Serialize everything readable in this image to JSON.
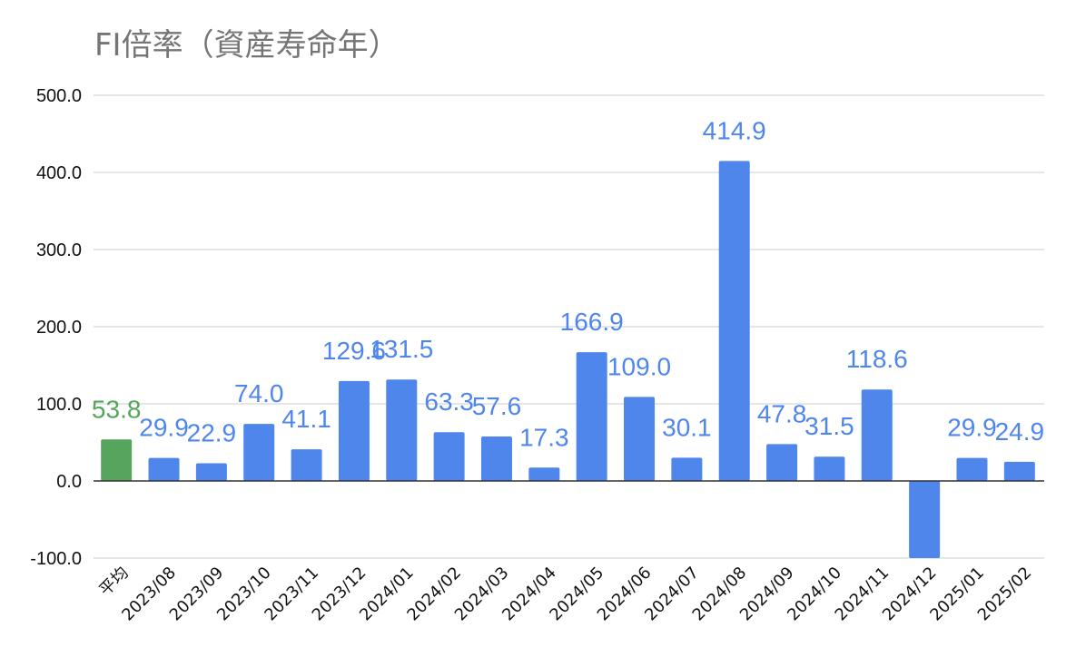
{
  "chart_data": {
    "type": "bar",
    "title": "FI倍率（資産寿命年）",
    "xlabel": "",
    "ylabel": "",
    "ylim": [
      -100,
      500
    ],
    "yticks": [
      "500.0",
      "400.0",
      "300.0",
      "200.0",
      "100.0",
      "0.0",
      "-100.0"
    ],
    "grid": true,
    "legend": "none",
    "categories": [
      "平均",
      "2023/08",
      "2023/09",
      "2023/10",
      "2023/11",
      "2023/12",
      "2024/01",
      "2024/02",
      "2024/03",
      "2024/04",
      "2024/05",
      "2024/06",
      "2024/07",
      "2024/08",
      "2024/09",
      "2024/10",
      "2024/11",
      "2024/12",
      "2025/01",
      "2025/02"
    ],
    "values": [
      53.8,
      29.9,
      22.9,
      74.0,
      41.1,
      129.6,
      131.5,
      63.3,
      57.6,
      17.3,
      166.9,
      109.0,
      30.1,
      414.9,
      47.8,
      31.5,
      118.6,
      -100.0,
      29.9,
      24.9
    ],
    "data_labels": [
      "53.8",
      "29.9",
      "22.9",
      "74.0",
      "41.1",
      "129.6",
      "131.5",
      "63.3",
      "57.6",
      "17.3",
      "166.9",
      "109.0",
      "30.1",
      "414.9",
      "47.8",
      "31.5",
      "118.6",
      "",
      "29.9",
      "24.9"
    ],
    "colors": {
      "bar": "#4f86ec",
      "average_bar": "#57a45c",
      "label": "#4f86ec",
      "average_label": "#57a45c",
      "grid": "#cccccc",
      "zero_line": "#333333"
    }
  }
}
